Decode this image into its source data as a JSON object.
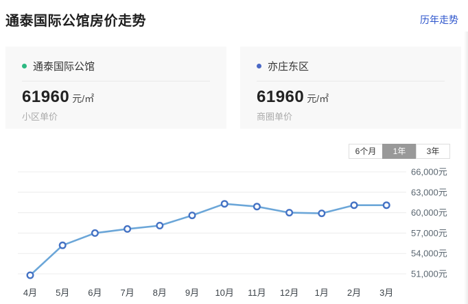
{
  "header": {
    "title": "通泰国际公馆房价走势",
    "link_label": "历年走势"
  },
  "cards": [
    {
      "name": "通泰国际公馆",
      "price": "61960",
      "unit": "元/㎡",
      "label": "小区单价"
    },
    {
      "name": "亦庄东区",
      "price": "61960",
      "unit": "元/㎡",
      "label": "商圈单价"
    }
  ],
  "tabs": {
    "options": [
      {
        "label": "6个月",
        "selected": false
      },
      {
        "label": "1年",
        "selected": true
      },
      {
        "label": "3年",
        "selected": false
      }
    ]
  },
  "colors": {
    "accent_link": "#2d55cc",
    "community_dot": "#2cb982",
    "district_dot": "#4a68c5",
    "line": "#6ba6d8",
    "marker_stroke": "#4472c4",
    "marker_fill": "#ffffff",
    "grid": "#ececec",
    "y_tick_text": "#5a6670",
    "x_tick_text": "#3b4248",
    "selected_tab_bg": "#999999"
  },
  "chart_data": {
    "type": "line",
    "title": "通泰国际公馆房价走势 (1年)",
    "categories": [
      "4月",
      "5月",
      "6月",
      "7月",
      "8月",
      "9月",
      "10月",
      "11月",
      "12月",
      "1月",
      "2月",
      "3月"
    ],
    "values": [
      50800,
      55200,
      57000,
      57600,
      58100,
      59600,
      61300,
      60900,
      60000,
      59900,
      61100,
      61100
    ],
    "series_name": "小区单价",
    "unit": "元/㎡",
    "xlabel": "",
    "ylabel": "",
    "ylim": [
      51000,
      66000
    ],
    "y_ticks": [
      {
        "value": 66000,
        "label": "66,000元"
      },
      {
        "value": 63000,
        "label": "63,000元"
      },
      {
        "value": 60000,
        "label": "60,000元"
      },
      {
        "value": 57000,
        "label": "57,000元"
      },
      {
        "value": 54000,
        "label": "54,000元"
      },
      {
        "value": 51000,
        "label": "51,000元"
      }
    ],
    "grid": "horizontal-only",
    "legend": "none",
    "tick_label_side": "right"
  }
}
